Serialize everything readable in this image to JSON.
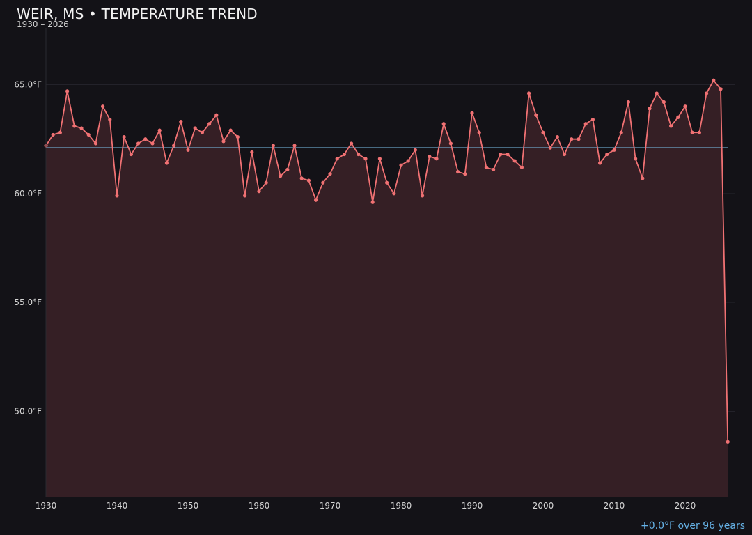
{
  "header": {
    "title": "WEIR, MS • TEMPERATURE TREND",
    "subtitle": "1930 – 2026"
  },
  "footer": {
    "trend_note": "+0.0°F over 96 years"
  },
  "colors": {
    "background": "#131217",
    "line": "#f07173",
    "area_fill": "#351f25",
    "mean_line": "#7cc4ee",
    "trend_text": "#66b3e8",
    "grid": "#23222a"
  },
  "chart_data": {
    "type": "line",
    "title": "WEIR, MS • TEMPERATURE TREND",
    "subtitle": "1930 – 2026",
    "xlabel": "",
    "ylabel": "",
    "xlim": [
      1930,
      2027
    ],
    "ylim": [
      46.0,
      69.0
    ],
    "x_ticks": [
      1930,
      1940,
      1950,
      1960,
      1970,
      1980,
      1990,
      2000,
      2010,
      2020
    ],
    "y_ticks": [
      50.0,
      55.0,
      60.0,
      65.0
    ],
    "y_tick_labels": [
      "50.0°F",
      "55.0°F",
      "60.0°F",
      "65.0°F"
    ],
    "grid": "horizontal",
    "mean_value": 62.1,
    "area_fill": true,
    "series": [
      {
        "x": [
          1930,
          1931,
          1932,
          1933,
          1934,
          1935,
          1936,
          1937,
          1938,
          1939,
          1940,
          1941,
          1942,
          1943,
          1944,
          1945,
          1946,
          1947,
          1948,
          1949,
          1950,
          1951,
          1952,
          1953,
          1954,
          1955,
          1956,
          1957,
          1958,
          1959,
          1960,
          1961,
          1962,
          1963,
          1964,
          1965,
          1966,
          1967,
          1968,
          1969,
          1970,
          1971,
          1972,
          1973,
          1974,
          1975,
          1976,
          1977,
          1978,
          1979,
          1980,
          1981,
          1982,
          1983,
          1984,
          1985,
          1986,
          1987,
          1988,
          1989,
          1990,
          1991,
          1992,
          1993,
          1994,
          1995,
          1996,
          1997,
          1998,
          1999,
          2000,
          2001,
          2002,
          2003,
          2004,
          2005,
          2006,
          2007,
          2008,
          2009,
          2010,
          2011,
          2012,
          2013,
          2014,
          2015,
          2016,
          2017,
          2018,
          2019,
          2020,
          2021,
          2022,
          2023,
          2024,
          2025,
          2026
        ],
        "values": [
          62.2,
          62.7,
          62.8,
          64.7,
          63.1,
          63.0,
          62.7,
          62.3,
          64.0,
          63.4,
          59.9,
          62.6,
          61.8,
          62.3,
          62.5,
          62.3,
          62.9,
          61.4,
          62.2,
          63.3,
          62.0,
          63.0,
          62.8,
          63.2,
          63.6,
          62.4,
          62.9,
          62.6,
          59.9,
          61.9,
          60.1,
          60.5,
          62.2,
          60.8,
          61.1,
          62.2,
          60.7,
          60.6,
          59.7,
          60.5,
          60.9,
          61.6,
          61.8,
          62.3,
          61.8,
          61.6,
          59.6,
          61.6,
          60.5,
          60.0,
          61.3,
          61.5,
          62.0,
          59.9,
          61.7,
          61.6,
          63.2,
          62.3,
          61.0,
          60.9,
          63.7,
          62.8,
          61.2,
          61.1,
          61.8,
          61.8,
          61.5,
          61.2,
          64.6,
          63.6,
          62.8,
          62.1,
          62.6,
          61.8,
          62.5,
          62.5,
          63.2,
          63.4,
          61.4,
          61.8,
          62.0,
          62.8,
          64.2,
          61.6,
          60.7,
          63.9,
          64.6,
          64.2,
          63.1,
          63.5,
          64.0,
          62.8,
          62.8,
          64.6,
          65.2,
          64.8,
          48.6
        ]
      }
    ]
  }
}
